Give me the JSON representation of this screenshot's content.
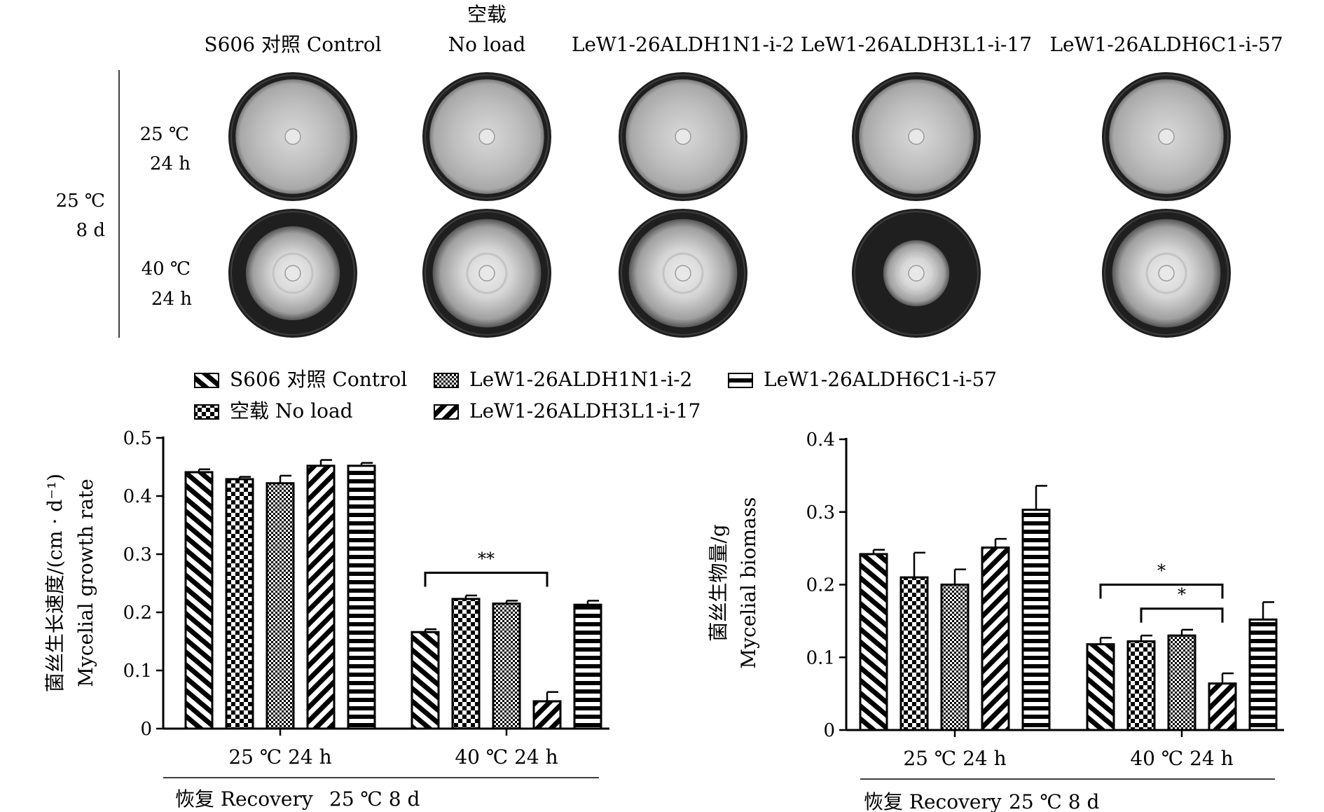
{
  "photo_panel": {
    "column_headers": [
      {
        "line1": "",
        "line2": "S606 对照 Control"
      },
      {
        "line1": "空载",
        "line2": "No load"
      },
      {
        "line1": "",
        "line2": "LeW1-26ALDH1N1-i-2"
      },
      {
        "line1": "",
        "line2": "LeW1-26ALDH3L1-i-17"
      },
      {
        "line1": "",
        "line2": "LeW1-26ALDH6C1-i-57"
      }
    ],
    "pre_condition": {
      "temp": "25 ℃",
      "duration": "8 d"
    },
    "row_labels": [
      {
        "temp": "25 ℃",
        "duration": "24 h"
      },
      {
        "temp": "40 ℃",
        "duration": "24 h"
      }
    ],
    "plate_growth_fraction": [
      [
        0.95,
        0.95,
        0.95,
        0.95,
        0.95
      ],
      [
        0.78,
        0.9,
        0.9,
        0.55,
        0.9
      ]
    ]
  },
  "legend": {
    "placement": "top",
    "entries": [
      {
        "label": "S606 对照 Control",
        "pattern": "diag-forward"
      },
      {
        "label": "空载 No load",
        "pattern": "checker"
      },
      {
        "label": "LeW1-26ALDH1N1-i-2",
        "pattern": "fine-checker"
      },
      {
        "label": "LeW1-26ALDH3L1-i-17",
        "pattern": "diag-back"
      },
      {
        "label": "LeW1-26ALDH6C1-i-57",
        "pattern": "horizontal"
      }
    ]
  },
  "chart_data": [
    {
      "type": "bar",
      "ylabel_cn": "菌丝生长速度/(cm · d⁻¹)",
      "ylabel_en": "Mycelial growth rate",
      "ylim": [
        0,
        0.5
      ],
      "yticks": [
        "0",
        "0.1",
        "0.2",
        "0.3",
        "0.4",
        "0.5"
      ],
      "categories": [
        "25 ℃ 24 h",
        "40 ℃ 24 h"
      ],
      "bracket_label": "恢复 Recovery",
      "bracket_condition": "25 ℃ 8 d",
      "series": [
        {
          "name": "S606 对照 Control",
          "values": [
            0.441,
            0.166
          ],
          "errors": [
            0.005,
            0.005
          ]
        },
        {
          "name": "空载 No load",
          "values": [
            0.429,
            0.223
          ],
          "errors": [
            0.004,
            0.006
          ]
        },
        {
          "name": "LeW1-26ALDH1N1-i-2",
          "values": [
            0.422,
            0.215
          ],
          "errors": [
            0.013,
            0.005
          ]
        },
        {
          "name": "LeW1-26ALDH3L1-i-17",
          "values": [
            0.452,
            0.047
          ],
          "errors": [
            0.01,
            0.016
          ]
        },
        {
          "name": "LeW1-26ALDH6C1-i-57",
          "values": [
            0.452,
            0.213
          ],
          "errors": [
            0.005,
            0.007
          ]
        }
      ],
      "significance": [
        {
          "group": 1,
          "from": 0,
          "to": 3,
          "level": 0.268,
          "label": "**"
        }
      ]
    },
    {
      "type": "bar",
      "ylabel_cn": "菌丝生物量/g",
      "ylabel_en": "Mycelial biomass",
      "ylim": [
        0,
        0.4
      ],
      "yticks": [
        "0",
        "0.1",
        "0.2",
        "0.3",
        "0.4"
      ],
      "categories": [
        "25 ℃ 24 h",
        "40 ℃ 24 h"
      ],
      "bracket_label": "恢复 Recovery",
      "bracket_condition": "25 ℃ 8 d",
      "series": [
        {
          "name": "S606 对照 Control",
          "values": [
            0.242,
            0.118
          ],
          "errors": [
            0.006,
            0.009
          ]
        },
        {
          "name": "空载 No load",
          "values": [
            0.21,
            0.122
          ],
          "errors": [
            0.034,
            0.008
          ]
        },
        {
          "name": "LeW1-26ALDH1N1-i-2",
          "values": [
            0.2,
            0.13
          ],
          "errors": [
            0.021,
            0.008
          ]
        },
        {
          "name": "LeW1-26ALDH3L1-i-17",
          "values": [
            0.251,
            0.064
          ],
          "errors": [
            0.012,
            0.014
          ]
        },
        {
          "name": "LeW1-26ALDH6C1-i-57",
          "values": [
            0.303,
            0.152
          ],
          "errors": [
            0.033,
            0.024
          ]
        }
      ],
      "significance": [
        {
          "group": 1,
          "from": 0,
          "to": 3,
          "level": 0.2,
          "label": "*"
        },
        {
          "group": 1,
          "from": 1,
          "to": 3,
          "level": 0.167,
          "label": "*"
        }
      ]
    }
  ]
}
